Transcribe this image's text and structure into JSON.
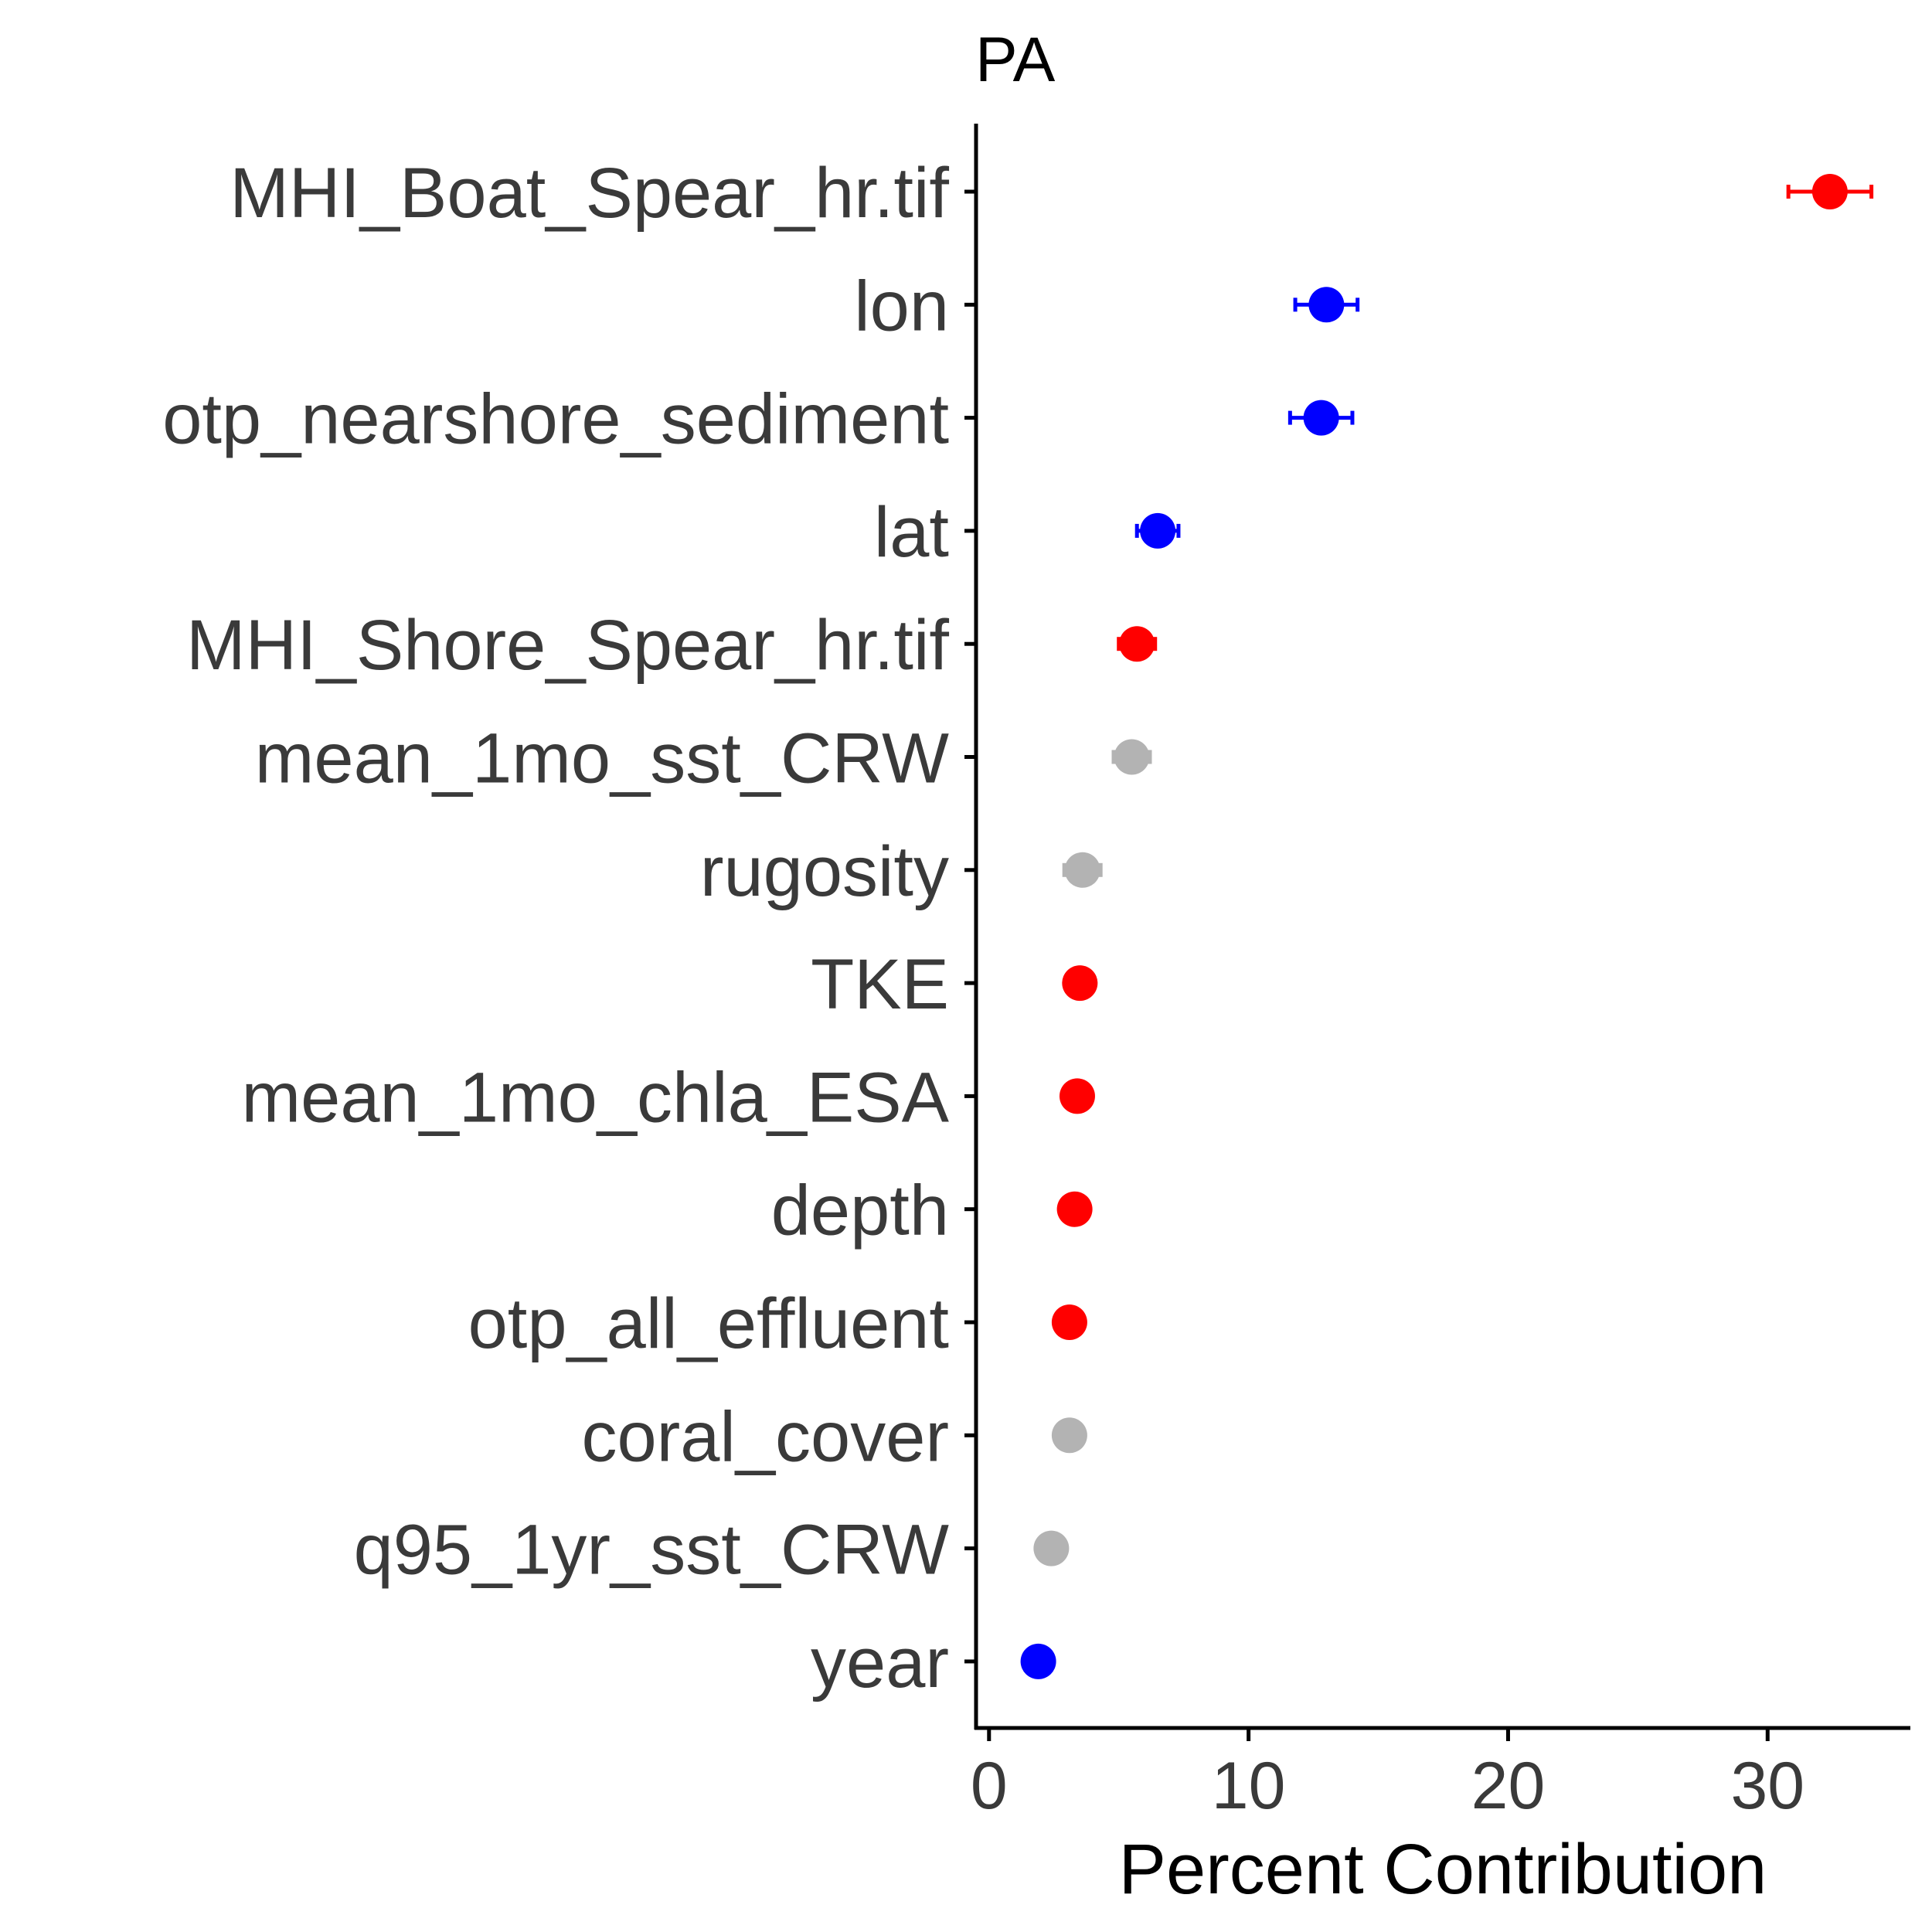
{
  "chart_data": {
    "type": "scatter",
    "title": "PA",
    "xlabel": "Percent Contribution",
    "ylabel": "",
    "xlim": [
      -0.5,
      35.5
    ],
    "xticks": [
      0,
      10,
      20,
      30
    ],
    "grid": false,
    "colors": {
      "red": "#ff0000",
      "blue": "#0000ff",
      "grey": "#b3b3b3"
    },
    "points": [
      {
        "label": "MHI_Boat_Spear_hr.tif",
        "value": 32.4,
        "low": 30.8,
        "high": 34.0,
        "color": "red"
      },
      {
        "label": "lon",
        "value": 13.0,
        "low": 11.8,
        "high": 14.2,
        "color": "blue"
      },
      {
        "label": "otp_nearshore_sediment",
        "value": 12.8,
        "low": 11.6,
        "high": 14.0,
        "color": "blue"
      },
      {
        "label": "lat",
        "value": 6.5,
        "low": 5.7,
        "high": 7.3,
        "color": "blue"
      },
      {
        "label": "MHI_Shore_Spear_hr.tif",
        "value": 5.7,
        "low": 5.0,
        "high": 6.4,
        "color": "red"
      },
      {
        "label": "mean_1mo_sst_CRW",
        "value": 5.5,
        "low": 4.8,
        "high": 6.2,
        "color": "grey"
      },
      {
        "label": "rugosity",
        "value": 3.6,
        "low": 2.9,
        "high": 4.3,
        "color": "grey"
      },
      {
        "label": "TKE",
        "value": 3.5,
        "low": 3.3,
        "high": 3.7,
        "color": "red"
      },
      {
        "label": "mean_1mo_chla_ESA",
        "value": 3.4,
        "low": 3.2,
        "high": 3.6,
        "color": "red"
      },
      {
        "label": "depth",
        "value": 3.3,
        "low": 3.1,
        "high": 3.5,
        "color": "red"
      },
      {
        "label": "otp_all_effluent",
        "value": 3.1,
        "low": 2.9,
        "high": 3.3,
        "color": "red"
      },
      {
        "label": "coral_cover",
        "value": 3.1,
        "low": 2.6,
        "high": 3.6,
        "color": "grey"
      },
      {
        "label": "q95_1yr_sst_CRW",
        "value": 2.4,
        "low": 2.2,
        "high": 2.6,
        "color": "grey"
      },
      {
        "label": "year",
        "value": 1.9,
        "low": 1.7,
        "high": 2.1,
        "color": "blue"
      }
    ]
  }
}
